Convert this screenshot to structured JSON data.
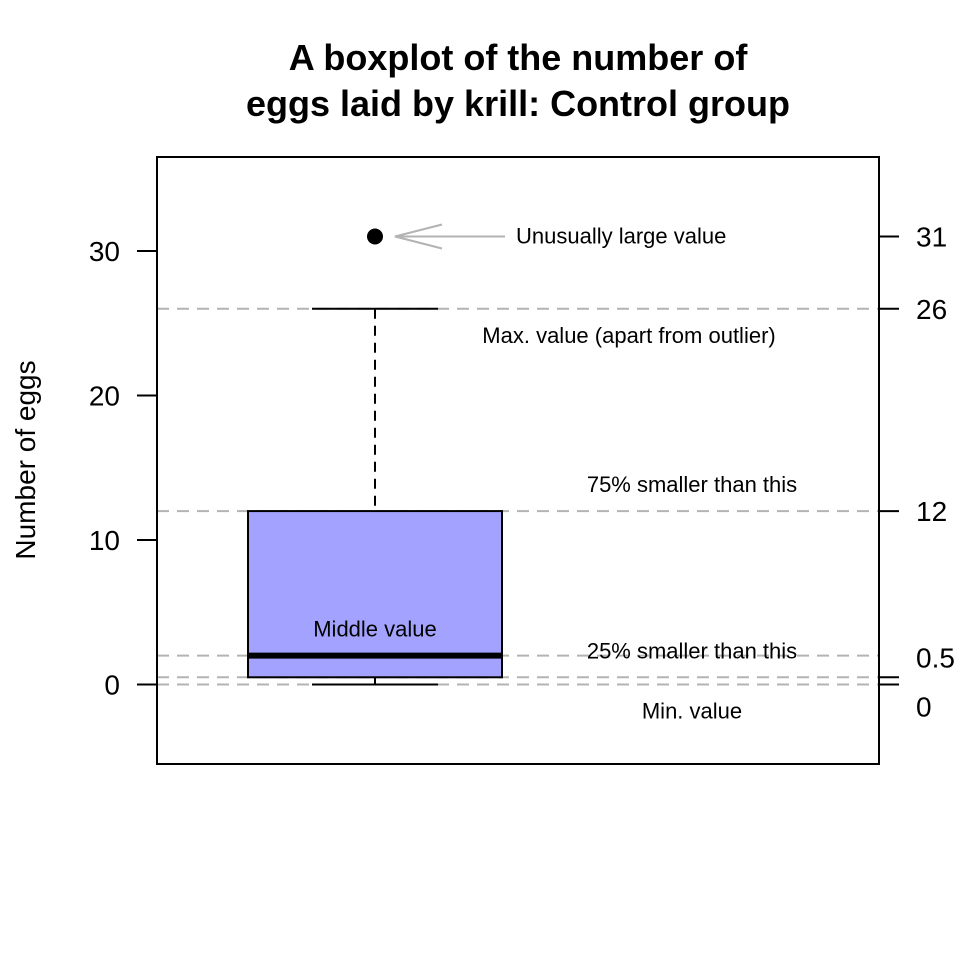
{
  "chart_data": {
    "type": "boxplot",
    "title_line1": "A boxplot of the number of",
    "title_line2": "eggs laid by krill: Control group",
    "ylabel": "Number of eggs",
    "ylim": [
      -5.5,
      36.5
    ],
    "left_ticks": [
      "0",
      "10",
      "20",
      "30"
    ],
    "right_ticks": [
      "31",
      "26",
      "12",
      "0.5",
      "0"
    ],
    "box": {
      "min": 0,
      "q1": 0.5,
      "median": 2,
      "q3": 12,
      "max": 26,
      "outliers": [
        31
      ]
    },
    "box_fill": "#a3a3ff",
    "reference_line_color": "#b3b3b3",
    "annotations": {
      "outlier": "Unusually large value",
      "max": "Max. value (apart from outlier)",
      "q3": "75% smaller than this",
      "median": "Middle value",
      "q1": "25% smaller than this",
      "min": "Min. value"
    }
  }
}
